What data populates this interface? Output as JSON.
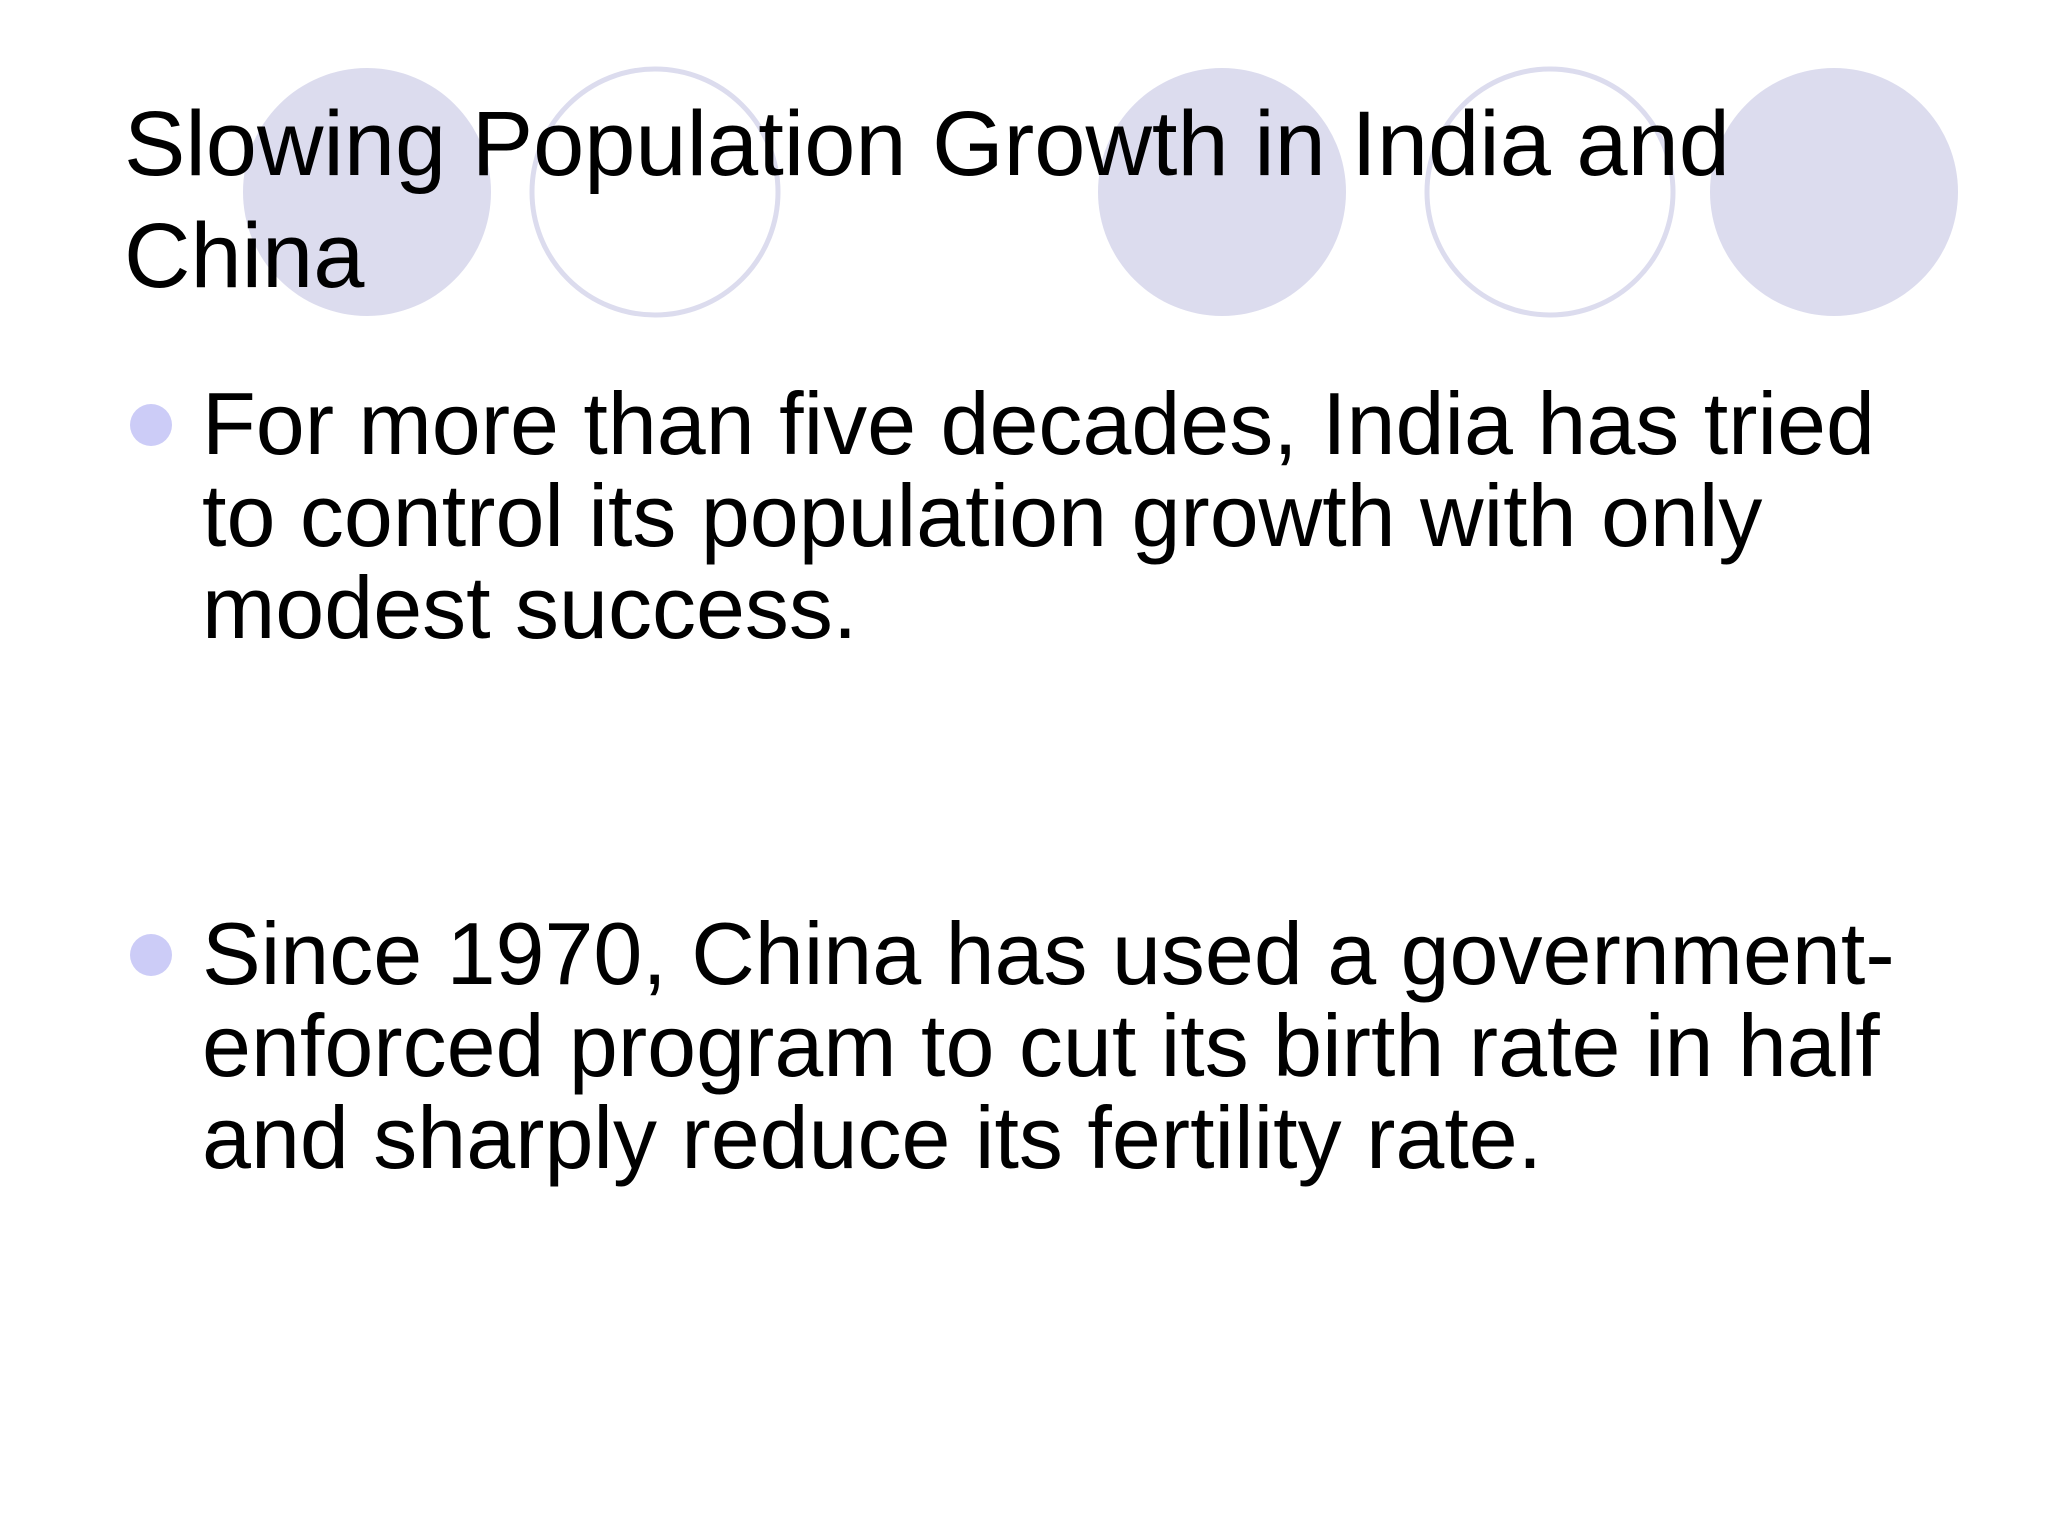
{
  "slide": {
    "title": "Slowing Population Growth in India and China",
    "bullets": [
      {
        "text": "For more than five decades, India has tried to control its population growth with only modest success."
      },
      {
        "text": "Since 1970, China has used a government-enforced program to cut its birth rate in half and sharply reduce its fertility rate."
      }
    ]
  },
  "theme": {
    "filled_circle_color": "#dcdcee",
    "outline_circle_color": "#dcdcee",
    "bullet_color": "#ccccf7",
    "text_color": "#000000",
    "background": "#ffffff"
  }
}
